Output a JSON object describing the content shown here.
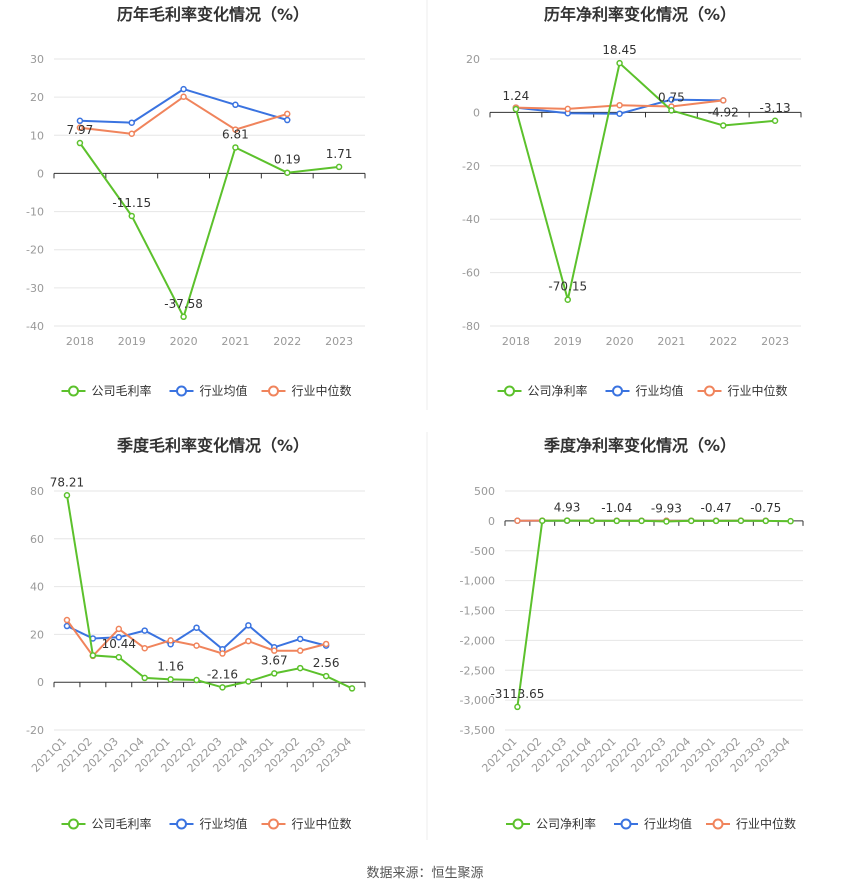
{
  "source": "数据来源：恒生聚源",
  "colors": {
    "company": "#5cc12c",
    "avg": "#3a73e0",
    "median": "#f0845c",
    "grid": "#e6e6e6",
    "axis": "#333333",
    "tick": "#999999"
  },
  "legend": {
    "gross": [
      "公司毛利率",
      "行业均值",
      "行业中位数"
    ],
    "net": [
      "公司净利率",
      "行业均值",
      "行业中位数"
    ]
  },
  "chart_data": [
    {
      "id": "annual-gross",
      "type": "line",
      "title": "历年毛利率变化情况（%）",
      "categories": [
        "2018",
        "2019",
        "2020",
        "2021",
        "2022",
        "2023"
      ],
      "ylim": [
        -40,
        30
      ],
      "yticks": [
        30,
        20,
        10,
        0,
        -10,
        -20,
        -30,
        -40
      ],
      "series": [
        {
          "name": "公司毛利率",
          "values": [
            7.97,
            -11.15,
            -37.58,
            6.81,
            0.19,
            1.71
          ],
          "labels": [
            "7.97",
            "-11.15",
            "-37.58",
            "6.81",
            "0.19",
            "1.71"
          ]
        },
        {
          "name": "行业均值",
          "values": [
            13.8,
            13.3,
            22.1,
            18.0,
            14.0,
            null
          ]
        },
        {
          "name": "行业中位数",
          "values": [
            12.0,
            10.4,
            20.1,
            11.5,
            15.6,
            null
          ]
        }
      ]
    },
    {
      "id": "annual-net",
      "type": "line",
      "title": "历年净利率变化情况（%）",
      "categories": [
        "2018",
        "2019",
        "2020",
        "2021",
        "2022",
        "2023"
      ],
      "ylim": [
        -80,
        20
      ],
      "yticks": [
        20,
        0,
        -20,
        -40,
        -60,
        -80
      ],
      "series": [
        {
          "name": "公司净利率",
          "values": [
            1.24,
            -70.15,
            18.45,
            0.75,
            -4.92,
            -3.13
          ],
          "labels": [
            "1.24",
            "-70.15",
            "18.45",
            "0.75",
            "-4.92",
            "-3.13"
          ]
        },
        {
          "name": "行业均值",
          "values": [
            1.8,
            -0.3,
            -0.5,
            4.8,
            4.5,
            null
          ]
        },
        {
          "name": "行业中位数",
          "values": [
            1.8,
            1.3,
            2.7,
            2.2,
            4.5,
            null
          ]
        }
      ]
    },
    {
      "id": "quarterly-gross",
      "type": "line",
      "title": "季度毛利率变化情况（%）",
      "categories": [
        "2021Q1",
        "2021Q2",
        "2021Q3",
        "2021Q4",
        "2022Q1",
        "2022Q2",
        "2022Q3",
        "2022Q4",
        "2023Q1",
        "2023Q2",
        "2023Q3",
        "2023Q4"
      ],
      "ylim": [
        -20,
        80
      ],
      "yticks": [
        80,
        60,
        40,
        20,
        0,
        -20
      ],
      "series": [
        {
          "name": "公司毛利率",
          "values": [
            78.21,
            11.2,
            10.44,
            1.8,
            1.16,
            0.9,
            -2.16,
            0.3,
            3.67,
            5.9,
            2.56,
            -2.6
          ],
          "labels": [
            "78.21",
            "",
            "10.44",
            "",
            "1.16",
            "",
            "-2.16",
            "",
            "3.67",
            "",
            "2.56",
            ""
          ]
        },
        {
          "name": "行业均值",
          "values": [
            23.5,
            18.3,
            18.8,
            21.6,
            15.9,
            22.8,
            13.8,
            23.8,
            14.6,
            18.1,
            15.3,
            null
          ]
        },
        {
          "name": "行业中位数",
          "values": [
            26.0,
            11.0,
            22.3,
            14.2,
            17.5,
            15.3,
            12.0,
            17.2,
            13.2,
            13.2,
            16.0,
            null
          ]
        }
      ]
    },
    {
      "id": "quarterly-net",
      "type": "line",
      "title": "季度净利率变化情况（%）",
      "categories": [
        "2021Q1",
        "2021Q2",
        "2021Q3",
        "2021Q4",
        "2022Q1",
        "2022Q2",
        "2022Q3",
        "2022Q4",
        "2023Q1",
        "2023Q2",
        "2023Q3",
        "2023Q4"
      ],
      "ylim": [
        -3500,
        500
      ],
      "yticks": [
        500,
        0,
        -500,
        -1000,
        -1500,
        -2000,
        -2500,
        -3000,
        -3500
      ],
      "ytickLabels": [
        "500",
        "0",
        "-500",
        "-1,000",
        "-1,500",
        "-2,000",
        "-2,500",
        "-3,000",
        "-3,500"
      ],
      "series": [
        {
          "name": "公司净利率",
          "values": [
            -3113.65,
            3,
            4.93,
            2,
            -1.04,
            1,
            -9.93,
            1,
            -0.47,
            2,
            -0.75,
            -5
          ],
          "labels": [
            "-3113.65",
            "",
            "4.93",
            "",
            "-1.04",
            "",
            "-9.93",
            "",
            "-0.47",
            "",
            "-0.75",
            ""
          ]
        },
        {
          "name": "行业均值",
          "values": [
            2,
            3,
            3,
            2,
            2,
            3,
            2,
            3,
            3,
            3,
            2,
            null
          ]
        },
        {
          "name": "行业中位数",
          "values": [
            3,
            4,
            4,
            3,
            3,
            3,
            3,
            3,
            3,
            4,
            3,
            null
          ]
        }
      ]
    }
  ]
}
